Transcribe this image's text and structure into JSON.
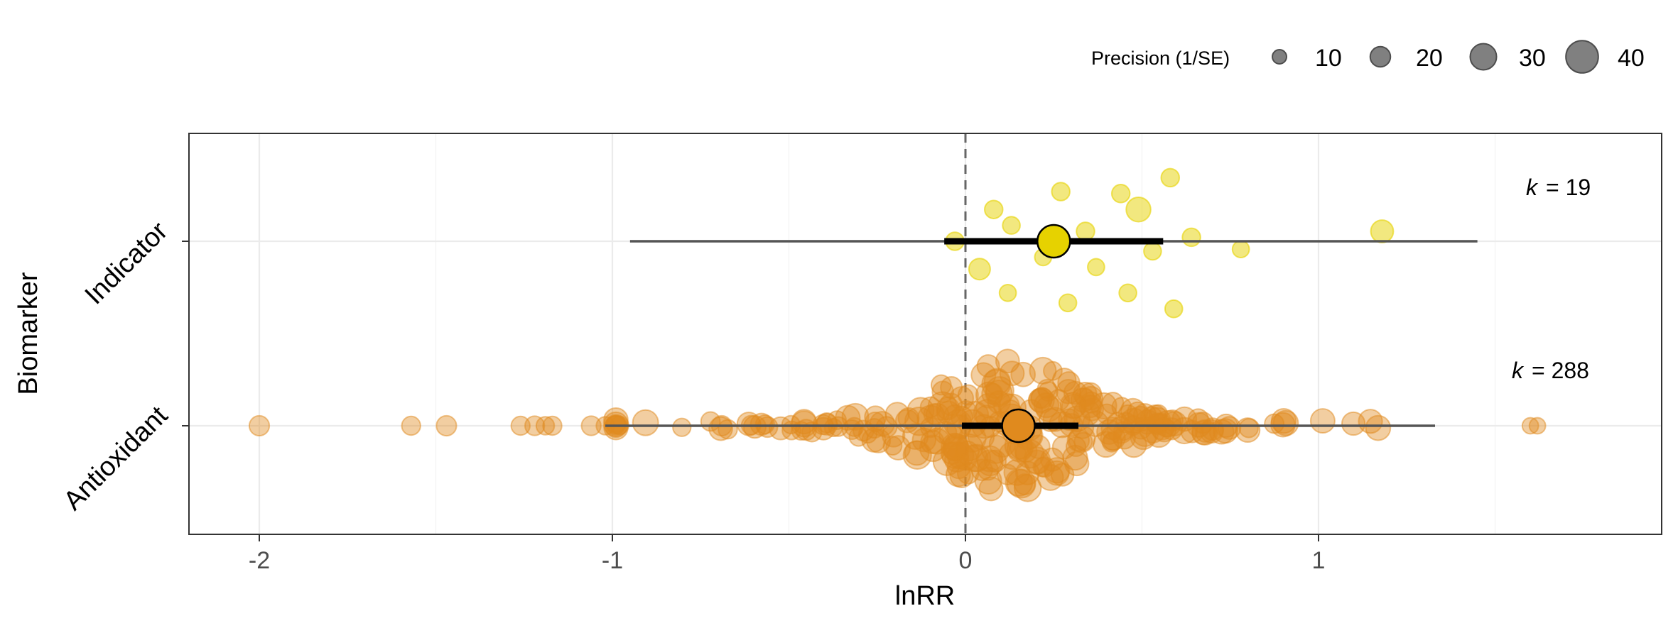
{
  "chart_data": {
    "type": "scatter",
    "subtype": "orchard plot",
    "xlabel": "lnRR",
    "ylabel": "Biomarker",
    "xlim": [
      -2.2,
      1.9
    ],
    "xticks": [
      -2,
      -1,
      0,
      1
    ],
    "x_minor_gridlines": [
      -1.5,
      -0.5,
      0.5,
      1.5
    ],
    "reference_line": {
      "x": 0,
      "style": "dashed",
      "color": "#666666"
    },
    "grid": true,
    "legend": {
      "title": "Precision (1/SE)",
      "placement": "top-right",
      "sizes": [
        10,
        20,
        30,
        40
      ],
      "fill": "#808080"
    },
    "categories": [
      "Indicator",
      "Antioxidant"
    ],
    "series": [
      {
        "name": "Indicator",
        "color": "#E6D200",
        "k_label": "= 19",
        "estimate": 0.25,
        "ci": [
          -0.06,
          0.56
        ],
        "pi": [
          -0.95,
          1.45
        ],
        "points": [
          {
            "x": 0.58,
            "j": 0.32,
            "p": 15
          },
          {
            "x": 0.27,
            "j": 0.25,
            "p": 15
          },
          {
            "x": 0.44,
            "j": 0.24,
            "p": 15
          },
          {
            "x": 0.08,
            "j": 0.16,
            "p": 15
          },
          {
            "x": 0.49,
            "j": 0.16,
            "p": 25
          },
          {
            "x": 0.13,
            "j": 0.08,
            "p": 14
          },
          {
            "x": 0.34,
            "j": 0.05,
            "p": 15
          },
          {
            "x": 0.64,
            "j": 0.02,
            "p": 15
          },
          {
            "x": -0.03,
            "j": 0.0,
            "p": 15
          },
          {
            "x": 1.18,
            "j": 0.05,
            "p": 22
          },
          {
            "x": 0.53,
            "j": -0.05,
            "p": 14
          },
          {
            "x": 0.78,
            "j": -0.04,
            "p": 13
          },
          {
            "x": 0.22,
            "j": -0.08,
            "p": 13
          },
          {
            "x": 0.37,
            "j": -0.13,
            "p": 13
          },
          {
            "x": 0.04,
            "j": -0.14,
            "p": 20
          },
          {
            "x": 0.12,
            "j": -0.26,
            "p": 13
          },
          {
            "x": 0.46,
            "j": -0.26,
            "p": 14
          },
          {
            "x": 0.29,
            "j": -0.31,
            "p": 14
          },
          {
            "x": 0.59,
            "j": -0.34,
            "p": 14
          }
        ]
      },
      {
        "name": "Antioxidant",
        "color": "#E08A1E",
        "k_label": "= 288",
        "estimate": 0.15,
        "ci": [
          -0.01,
          0.32
        ],
        "pi": [
          -1.02,
          1.33
        ],
        "point_count": 288,
        "anchor_points": [
          {
            "x": -2.0,
            "p": 18
          },
          {
            "x": -1.57,
            "p": 16
          },
          {
            "x": -1.47,
            "p": 18
          },
          {
            "x": -1.26,
            "p": 16
          },
          {
            "x": -1.22,
            "p": 17
          },
          {
            "x": -1.19,
            "p": 15
          },
          {
            "x": -1.17,
            "p": 16
          },
          {
            "x": -1.06,
            "p": 17
          },
          {
            "x": -1.02,
            "p": 15
          },
          {
            "x": 1.6,
            "p": 12
          },
          {
            "x": 1.62,
            "p": 12
          }
        ]
      }
    ]
  }
}
